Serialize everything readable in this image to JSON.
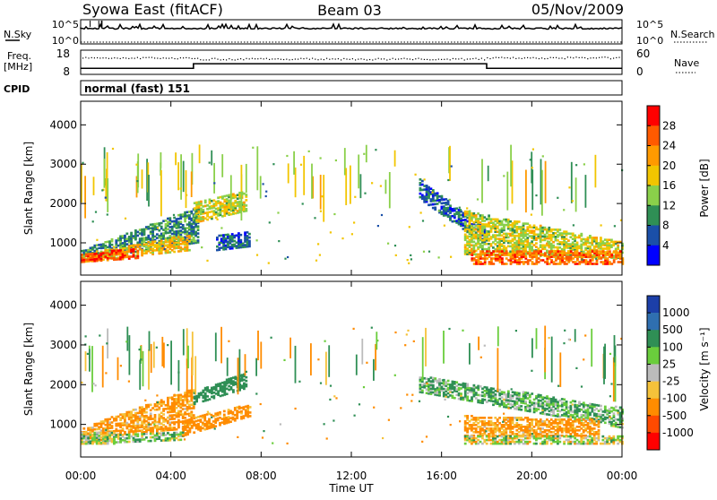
{
  "header": {
    "station": "Syowa East (fitACF)",
    "beam": "Beam 03",
    "date": "05/Nov/2009"
  },
  "strips": {
    "nsky_label": "N.Sky",
    "nsky_ticks": [
      "10^5",
      "10^0"
    ],
    "nsearch_label": "N.Search",
    "nsearch_ticks": [
      "10^5",
      "10^0"
    ],
    "freq_label_1": "Freq.",
    "freq_label_2": "[MHz]",
    "freq_ticks": [
      "18",
      "8"
    ],
    "nave_label": "Nave",
    "nave_ticks": [
      "60",
      "0"
    ],
    "cpid_label": "CPID",
    "cpid_text": "normal (fast) 151"
  },
  "axis": {
    "xlabel": "Time UT",
    "ylabel": "Slant Range [km]",
    "xticks": [
      "00:00",
      "04:00",
      "08:00",
      "12:00",
      "16:00",
      "20:00",
      "00:00"
    ],
    "yticks": [
      "1000",
      "2000",
      "3000",
      "4000"
    ]
  },
  "power_scale": {
    "label": "Power [dB]",
    "ticks": [
      "28",
      "24",
      "20",
      "16",
      "12",
      "8",
      "4"
    ],
    "colors": [
      "#ff0000",
      "#ff5a00",
      "#ff9a00",
      "#f2c500",
      "#8ad04a",
      "#2f8f55",
      "#1a4fa8",
      "#0000ff"
    ]
  },
  "velocity_scale": {
    "label": "Velocity [m s⁻¹]",
    "ticks": [
      "1000",
      "500",
      "100",
      "25",
      "-25",
      "-100",
      "-500",
      "-1000"
    ],
    "colors": [
      "#1c3fa8",
      "#2f6fb0",
      "#2f8f55",
      "#6acd3c",
      "#bbbbbb",
      "#f5c23a",
      "#ff8c00",
      "#ff4a00",
      "#ff0000"
    ]
  },
  "chart_data": [
    {
      "type": "heatmap",
      "name": "power",
      "xlabel": "Time UT",
      "ylabel": "Slant Range [km]",
      "xlim": [
        0,
        24
      ],
      "ylim": [
        180,
        4600
      ],
      "clabel": "Power [dB]",
      "crange": [
        0,
        32
      ],
      "regions": [
        {
          "t": [
            0,
            5.2
          ],
          "r0": [
            550,
            1000
          ],
          "r1": [
            800,
            1900
          ],
          "level": 9
        },
        {
          "t": [
            0,
            4.8
          ],
          "r0": [
            500,
            800
          ],
          "r1": [
            700,
            1200
          ],
          "level": 19
        },
        {
          "t": [
            0,
            2.5
          ],
          "r0": [
            500,
            600
          ],
          "r1": [
            700,
            850
          ],
          "level": 27
        },
        {
          "t": [
            5,
            7.3
          ],
          "r0": [
            1500,
            1800
          ],
          "r1": [
            2000,
            2300
          ],
          "level": 16
        },
        {
          "t": [
            6,
            7.5
          ],
          "r0": [
            800,
            900
          ],
          "r1": [
            1200,
            1300
          ],
          "level": 7
        },
        {
          "t": [
            15,
            18
          ],
          "r0": [
            2100,
            900
          ],
          "r1": [
            2600,
            1300
          ],
          "level": 7
        },
        {
          "t": [
            17,
            24
          ],
          "r0": [
            700,
            600
          ],
          "r1": [
            1800,
            1000
          ],
          "level": 16
        },
        {
          "t": [
            17.3,
            24
          ],
          "r0": [
            450,
            450
          ],
          "r1": [
            800,
            800
          ],
          "level": 25
        }
      ]
    },
    {
      "type": "heatmap",
      "name": "velocity",
      "xlabel": "Time UT",
      "ylabel": "Slant Range [km]",
      "xlim": [
        0,
        24
      ],
      "ylim": [
        180,
        4600
      ],
      "clabel": "Velocity [m s⁻¹]",
      "crange": [
        -1000,
        1000
      ],
      "regions": [
        {
          "t": [
            0,
            5
          ],
          "r0": [
            650,
            900
          ],
          "r1": [
            900,
            1900
          ],
          "level": -150
        },
        {
          "t": [
            0,
            1.5
          ],
          "r0": [
            500,
            500
          ],
          "r1": [
            800,
            800
          ],
          "level": 0
        },
        {
          "t": [
            0,
            4.5
          ],
          "r0": [
            500,
            600
          ],
          "r1": [
            700,
            800
          ],
          "level": 40
        },
        {
          "t": [
            4.5,
            7.5
          ],
          "r0": [
            700,
            1200
          ],
          "r1": [
            1100,
            1500
          ],
          "level": -200
        },
        {
          "t": [
            5,
            7.3
          ],
          "r0": [
            1500,
            1900
          ],
          "r1": [
            1800,
            2300
          ],
          "level": 300
        },
        {
          "t": [
            15,
            24
          ],
          "r0": [
            1800,
            900
          ],
          "r1": [
            2200,
            1400
          ],
          "level": 100
        },
        {
          "t": [
            17,
            23
          ],
          "r0": [
            700,
            700
          ],
          "r1": [
            1200,
            1100
          ],
          "level": -150
        },
        {
          "t": [
            17,
            24
          ],
          "r0": [
            500,
            500
          ],
          "r1": [
            700,
            700
          ],
          "level": 0
        }
      ]
    }
  ]
}
